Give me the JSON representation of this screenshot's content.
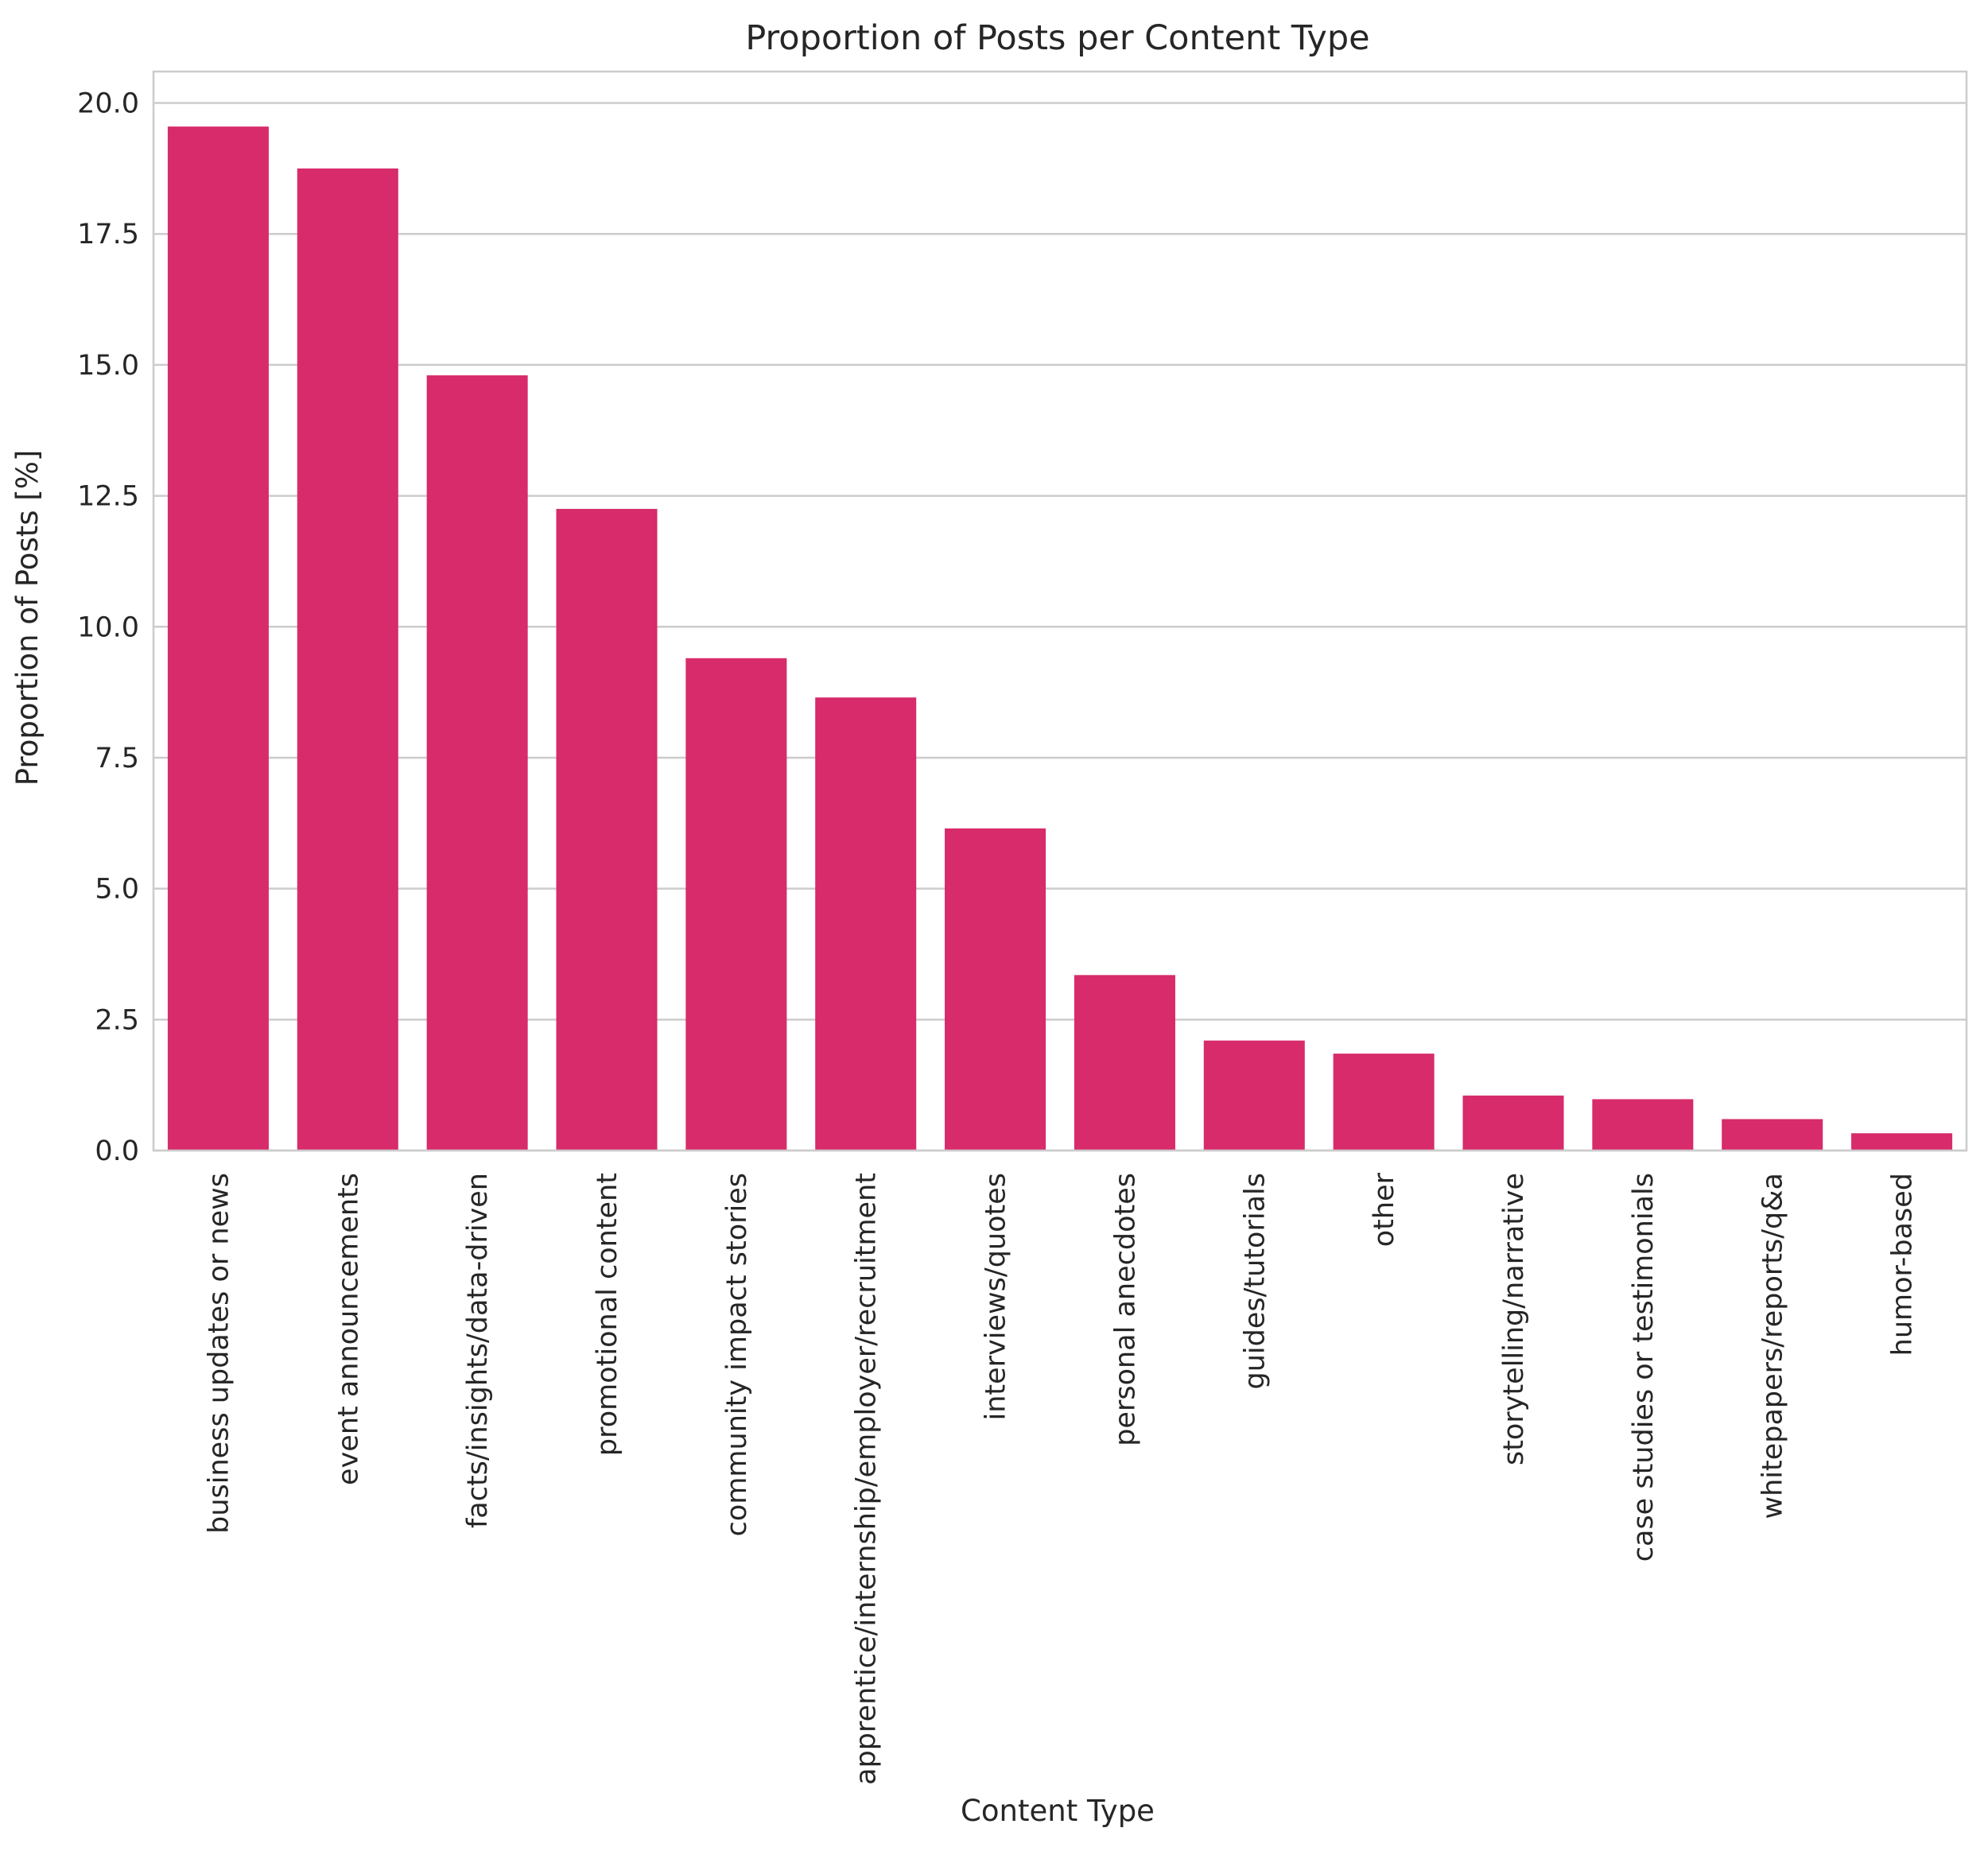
{
  "chart_data": {
    "type": "bar",
    "title": "Proportion of Posts per Content Type",
    "xlabel": "Content Type",
    "ylabel": "Proportion of Posts [%]",
    "ylim": [
      0,
      20.6
    ],
    "yticks": [
      "0.0",
      "2.5",
      "5.0",
      "7.5",
      "10.0",
      "12.5",
      "15.0",
      "17.5",
      "20.0"
    ],
    "grid": "horizontal",
    "bar_color": "#D72B6B",
    "categories": [
      "business updates or news",
      "event announcements",
      "facts/insights/data-driven",
      "promotional content",
      "community impact stories",
      "apprentice/internship/employer/recruitment",
      "interviews/quotes",
      "personal anecdotes",
      "guides/tutorials",
      "other",
      "storytelling/narrative",
      "case studies or testimonials",
      "whitepapers/reports/q&a",
      "humor-based"
    ],
    "values": [
      19.55,
      18.75,
      14.8,
      12.25,
      9.4,
      8.65,
      6.15,
      3.35,
      2.1,
      1.85,
      1.05,
      0.98,
      0.6,
      0.33
    ]
  }
}
